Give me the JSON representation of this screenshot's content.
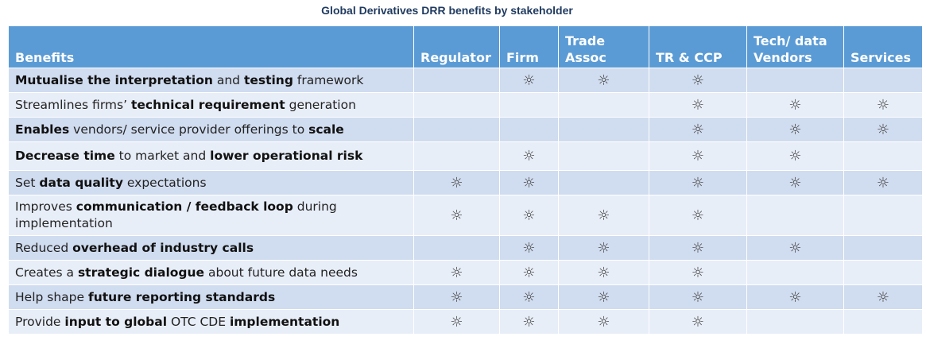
{
  "title": "Global Derivatives DRR benefits by stakeholder",
  "icon": "sun-icon",
  "icon_glyph": "☼",
  "columns": [
    "Benefits",
    "Regulator",
    "Firm",
    "Trade\nAssoc",
    "TR & CCP",
    "Tech/ data\nVendors",
    "Services"
  ],
  "rows": [
    {
      "parts": [
        {
          "t": "Mutualise the interpretation",
          "b": true
        },
        {
          "t": " and ",
          "b": false
        },
        {
          "t": "testing",
          "b": true
        },
        {
          "t": " framework",
          "b": false
        }
      ],
      "marks": [
        false,
        true,
        true,
        true,
        false,
        false
      ]
    },
    {
      "parts": [
        {
          "t": "Streamlines firms’ ",
          "b": false
        },
        {
          "t": "technical requirement",
          "b": true
        },
        {
          "t": " generation",
          "b": false
        }
      ],
      "marks": [
        false,
        false,
        false,
        true,
        true,
        true
      ]
    },
    {
      "parts": [
        {
          "t": "Enables",
          "b": true
        },
        {
          "t": " vendors/ service provider offerings to ",
          "b": false
        },
        {
          "t": "scale",
          "b": true
        }
      ],
      "marks": [
        false,
        false,
        false,
        true,
        true,
        true
      ]
    },
    {
      "parts": [
        {
          "t": "Decrease time",
          "b": true
        },
        {
          "t": " to market and ",
          "b": false
        },
        {
          "t": "lower operational risk",
          "b": true
        }
      ],
      "marks": [
        false,
        true,
        false,
        true,
        true,
        false
      ]
    },
    {
      "parts": [
        {
          "t": "Set ",
          "b": false
        },
        {
          "t": "data quality",
          "b": true
        },
        {
          "t": " expectations",
          "b": false
        }
      ],
      "marks": [
        true,
        true,
        false,
        true,
        true,
        true
      ]
    },
    {
      "parts": [
        {
          "t": "Improves ",
          "b": false
        },
        {
          "t": "communication / feedback loop",
          "b": true
        },
        {
          "t": " during implementation",
          "b": false
        }
      ],
      "marks": [
        true,
        true,
        true,
        true,
        false,
        false
      ]
    },
    {
      "parts": [
        {
          "t": "Reduced ",
          "b": false
        },
        {
          "t": "overhead of industry calls",
          "b": true
        }
      ],
      "marks": [
        false,
        true,
        true,
        true,
        true,
        false
      ]
    },
    {
      "parts": [
        {
          "t": "Creates a ",
          "b": false
        },
        {
          "t": "strategic dialogue",
          "b": true
        },
        {
          "t": " about future data needs",
          "b": false
        }
      ],
      "marks": [
        true,
        true,
        true,
        true,
        false,
        false
      ]
    },
    {
      "parts": [
        {
          "t": "Help shape ",
          "b": false
        },
        {
          "t": "future reporting standards",
          "b": true
        }
      ],
      "marks": [
        true,
        true,
        true,
        true,
        true,
        true
      ]
    },
    {
      "parts": [
        {
          "t": "Provide ",
          "b": false
        },
        {
          "t": "input to global",
          "b": true
        },
        {
          "t": " OTC CDE ",
          "b": false
        },
        {
          "t": "implementation",
          "b": true
        }
      ],
      "marks": [
        true,
        true,
        true,
        true,
        false,
        false
      ]
    }
  ]
}
